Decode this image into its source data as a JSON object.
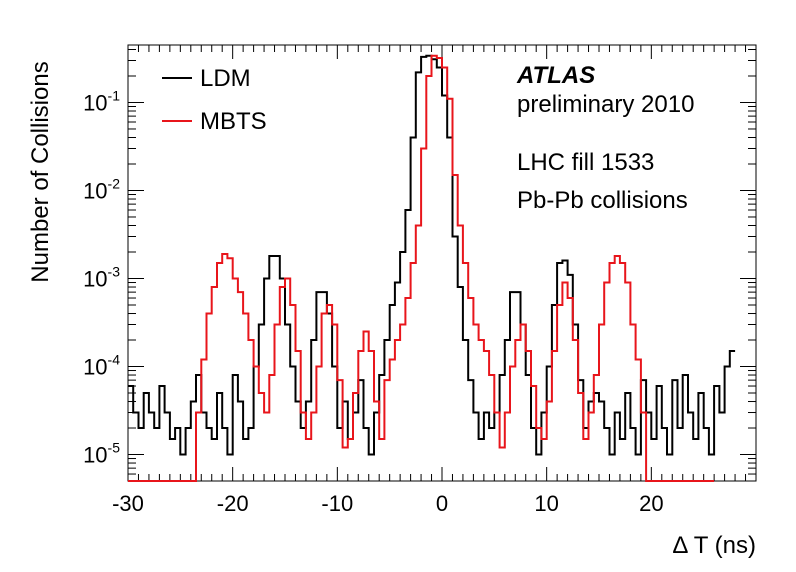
{
  "chart_data": {
    "type": "line",
    "step": true,
    "xlabel": "Δ T (ns)",
    "ylabel": "Number of Collisions",
    "xlim": [
      -30,
      30
    ],
    "ylim": [
      5e-06,
      0.45
    ],
    "yscale": "log",
    "grid": false,
    "legend_position": "top-left",
    "x_tick_labels": [
      "-30",
      "-20",
      "-10",
      "0",
      "10",
      "20"
    ],
    "x_tick_values": [
      -30,
      -20,
      -10,
      0,
      10,
      20
    ],
    "y_tick_values": [
      1e-05,
      0.0001,
      0.001,
      0.01,
      0.1
    ],
    "y_tick_base": "10",
    "y_tick_exponents": [
      "-5",
      "-4",
      "-3",
      "-2",
      "-1"
    ],
    "annotations": {
      "experiment": "ATLAS",
      "status": "preliminary 2010",
      "fill": "LHC fill 1533",
      "system": "Pb-Pb collisions"
    },
    "bin_edges": [
      -30,
      -29.5,
      -29,
      -28.5,
      -28,
      -27.5,
      -27,
      -26.5,
      -26,
      -25.5,
      -25,
      -24.5,
      -24,
      -23.5,
      -23,
      -22.5,
      -22,
      -21.5,
      -21,
      -20.5,
      -20,
      -19.5,
      -19,
      -18.5,
      -18,
      -17.5,
      -17,
      -16.5,
      -16,
      -15.5,
      -15,
      -14.5,
      -14,
      -13.5,
      -13,
      -12.5,
      -12,
      -11.5,
      -11,
      -10.5,
      -10,
      -9.5,
      -9,
      -8.5,
      -8,
      -7.5,
      -7,
      -6.5,
      -6,
      -5.5,
      -5,
      -4.5,
      -4,
      -3.5,
      -3,
      -2.5,
      -2,
      -1.5,
      -1,
      -0.5,
      0,
      0.5,
      1,
      1.5,
      2,
      2.5,
      3,
      3.5,
      4,
      4.5,
      5,
      5.5,
      6,
      6.5,
      7,
      7.5,
      8,
      8.5,
      9,
      9.5,
      10,
      10.5,
      11,
      11.5,
      12,
      12.5,
      13,
      13.5,
      14,
      14.5,
      15,
      15.5,
      16,
      16.5,
      17,
      17.5,
      18,
      18.5,
      19,
      19.5,
      20,
      20.5,
      21,
      21.5,
      22,
      22.5,
      23,
      23.5,
      24,
      24.5,
      25,
      25.5,
      26,
      26.5,
      27,
      27.5,
      28,
      28.5,
      29,
      29.5,
      30
    ],
    "series": [
      {
        "name": "LDM",
        "color": "#000000",
        "values": [
          6e-05,
          3e-05,
          2e-05,
          5e-05,
          3e-05,
          2e-05,
          6e-05,
          3e-05,
          1.5e-05,
          2e-05,
          1e-05,
          2e-05,
          4e-05,
          8e-05,
          3e-05,
          2e-05,
          1.5e-05,
          5e-05,
          2e-05,
          1e-05,
          8e-05,
          4e-05,
          1.5e-05,
          2e-05,
          0.0001,
          0.0003,
          0.001,
          0.0018,
          0.0018,
          0.001,
          0.0003,
          0.0001,
          4e-05,
          2e-05,
          4e-05,
          0.0002,
          0.0007,
          0.0007,
          0.0004,
          0.0001,
          2e-05,
          4e-05,
          1.5e-05,
          3e-05,
          7e-05,
          2e-05,
          1e-05,
          3e-05,
          8e-05,
          0.0002,
          0.0005,
          0.0009,
          0.002,
          0.006,
          0.04,
          0.22,
          0.33,
          0.34,
          0.31,
          0.25,
          0.12,
          0.04,
          0.003,
          0.0008,
          0.0002,
          7e-05,
          3e-05,
          1.5e-05,
          3e-05,
          2e-05,
          3e-05,
          8e-05,
          0.0002,
          0.0007,
          0.0007,
          0.0003,
          8e-05,
          2e-05,
          1e-05,
          3e-05,
          0.0001,
          0.0005,
          0.0015,
          0.0016,
          0.0011,
          0.0003,
          7e-05,
          2e-05,
          4e-05,
          5e-05,
          4e-05,
          2e-05,
          1e-05,
          3e-05,
          1.5e-05,
          5e-05,
          2e-05,
          1e-05,
          7e-05,
          3e-05,
          1.5e-05,
          6e-05,
          2e-05,
          1e-05,
          7e-05,
          2e-05,
          8e-05,
          3e-05,
          1.5e-05,
          5e-05,
          2e-05,
          1e-05,
          6e-05,
          3e-05,
          0.0001,
          0.00015
        ]
      },
      {
        "name": "MBTS",
        "color": "#e8151b",
        "values": [
          0,
          0,
          0,
          0,
          0,
          0,
          0,
          0,
          0,
          0,
          0,
          0,
          0,
          3e-05,
          0.00012,
          0.0004,
          0.0008,
          0.0015,
          0.0019,
          0.0017,
          0.001,
          0.0007,
          0.0004,
          0.0002,
          0.0001,
          5e-05,
          3e-05,
          8e-05,
          0.0003,
          0.0008,
          0.001,
          0.0005,
          0.00015,
          3e-05,
          1.5e-05,
          3e-05,
          0.0001,
          0.0004,
          0.0005,
          0.0003,
          7e-05,
          1.2e-05,
          1.5e-05,
          5e-05,
          0.00015,
          0.00025,
          0.00015,
          4e-05,
          1.5e-05,
          7e-05,
          0.00012,
          0.0002,
          0.0003,
          0.0006,
          0.0015,
          0.004,
          0.03,
          0.2,
          0.34,
          0.32,
          0.25,
          0.11,
          0.015,
          0.004,
          0.0015,
          0.0006,
          0.0003,
          0.0002,
          0.00015,
          8e-05,
          3e-05,
          1.2e-05,
          3e-05,
          0.0001,
          0.0002,
          0.0003,
          0.00015,
          6e-05,
          2e-05,
          1.5e-05,
          4e-05,
          0.00015,
          0.0005,
          0.0009,
          0.0006,
          0.0002,
          5e-05,
          1.5e-05,
          3e-05,
          8e-05,
          0.0003,
          0.0009,
          0.0015,
          0.0018,
          0.0015,
          0.0009,
          0.0003,
          0.00012,
          3e-05,
          0,
          0,
          0,
          0,
          0,
          0,
          0,
          0,
          0,
          0,
          0,
          0,
          0
        ]
      }
    ]
  }
}
